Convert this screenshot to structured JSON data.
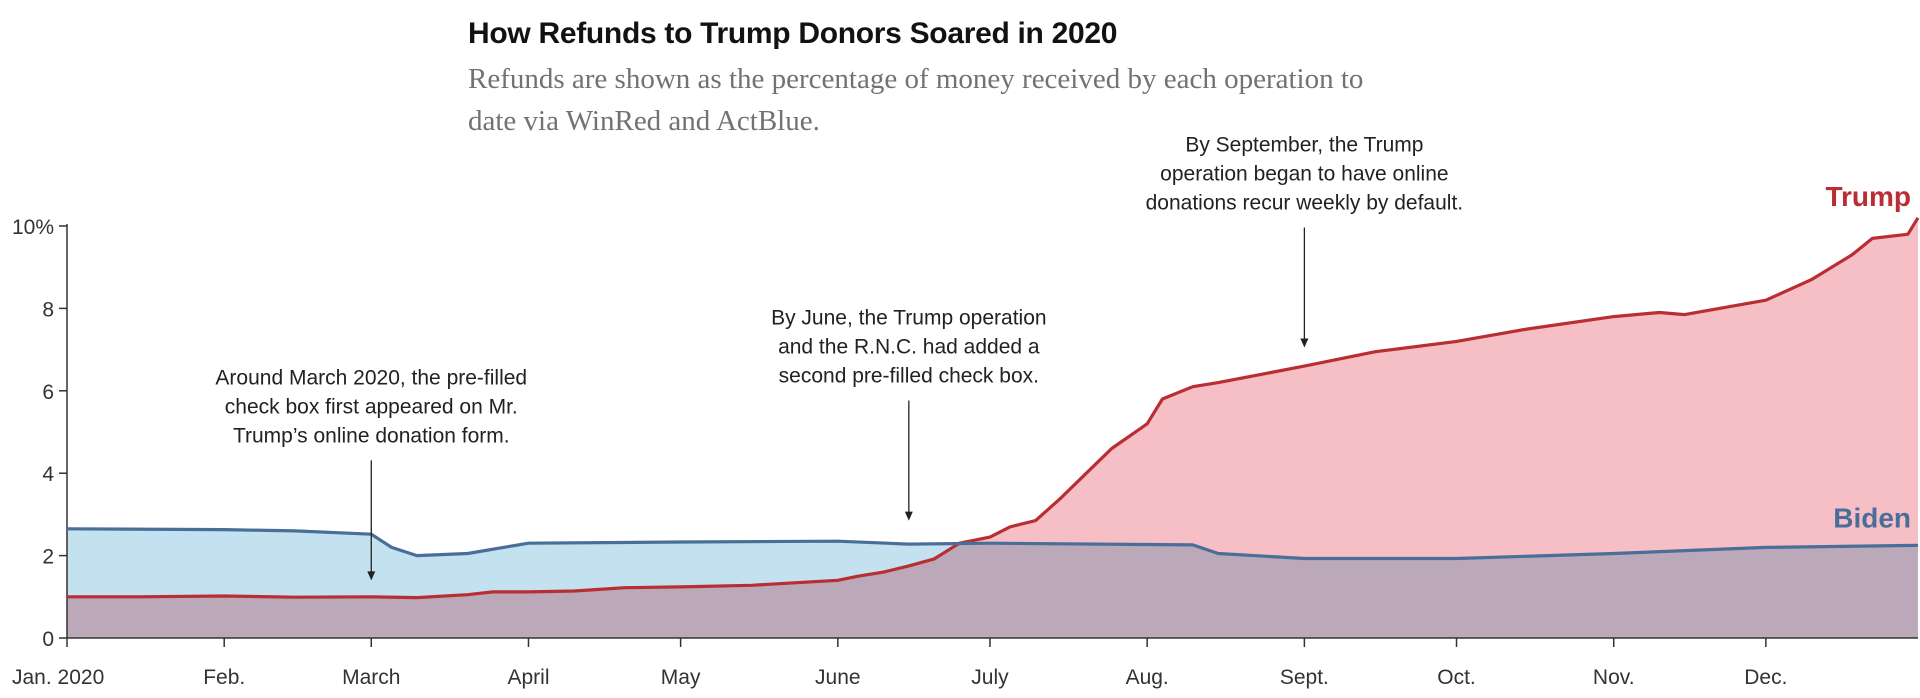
{
  "chart_data": {
    "type": "area",
    "title": "How Refunds to Trump Donors Soared in 2020",
    "subtitle": "Refunds are shown as the percentage of money received by each operation to date via WinRed and ActBlue.",
    "xlabel": "",
    "ylabel": "",
    "x_range": [
      "2020-01-01",
      "2020-12-31"
    ],
    "ylim": [
      0,
      10
    ],
    "y_ticks": [
      {
        "value": 0,
        "label": "0"
      },
      {
        "value": 2,
        "label": "2"
      },
      {
        "value": 4,
        "label": "4"
      },
      {
        "value": 6,
        "label": "6"
      },
      {
        "value": 8,
        "label": "8"
      },
      {
        "value": 10,
        "label": "10%"
      }
    ],
    "x_ticks": [
      {
        "date": "2020-01-01",
        "label": "Jan. 2020"
      },
      {
        "date": "2020-02-01",
        "label": "Feb."
      },
      {
        "date": "2020-03-01",
        "label": "March"
      },
      {
        "date": "2020-04-01",
        "label": "April"
      },
      {
        "date": "2020-05-01",
        "label": "May"
      },
      {
        "date": "2020-06-01",
        "label": "June"
      },
      {
        "date": "2020-07-01",
        "label": "July"
      },
      {
        "date": "2020-08-01",
        "label": "Aug."
      },
      {
        "date": "2020-09-01",
        "label": "Sept."
      },
      {
        "date": "2020-10-01",
        "label": "Oct."
      },
      {
        "date": "2020-11-01",
        "label": "Nov."
      },
      {
        "date": "2020-12-01",
        "label": "Dec."
      }
    ],
    "grid": false,
    "series": [
      {
        "name": "Trump",
        "color": "#b82e33",
        "fill": "#f5bfc5",
        "points": [
          [
            "2020-01-01",
            1.0
          ],
          [
            "2020-01-15",
            1.0
          ],
          [
            "2020-02-01",
            1.02
          ],
          [
            "2020-02-15",
            0.99
          ],
          [
            "2020-03-01",
            1.0
          ],
          [
            "2020-03-10",
            0.98
          ],
          [
            "2020-03-20",
            1.05
          ],
          [
            "2020-03-25",
            1.12
          ],
          [
            "2020-04-01",
            1.12
          ],
          [
            "2020-04-10",
            1.14
          ],
          [
            "2020-04-15",
            1.18
          ],
          [
            "2020-04-20",
            1.22
          ],
          [
            "2020-05-01",
            1.24
          ],
          [
            "2020-05-15",
            1.28
          ],
          [
            "2020-06-01",
            1.4
          ],
          [
            "2020-06-05",
            1.5
          ],
          [
            "2020-06-10",
            1.6
          ],
          [
            "2020-06-15",
            1.75
          ],
          [
            "2020-06-20",
            1.92
          ],
          [
            "2020-06-25",
            2.3
          ],
          [
            "2020-07-01",
            2.45
          ],
          [
            "2020-07-05",
            2.7
          ],
          [
            "2020-07-10",
            2.85
          ],
          [
            "2020-07-15",
            3.4
          ],
          [
            "2020-07-20",
            4.0
          ],
          [
            "2020-07-25",
            4.6
          ],
          [
            "2020-08-01",
            5.2
          ],
          [
            "2020-08-04",
            5.8
          ],
          [
            "2020-08-10",
            6.1
          ],
          [
            "2020-08-15",
            6.2
          ],
          [
            "2020-09-01",
            6.6
          ],
          [
            "2020-09-15",
            6.95
          ],
          [
            "2020-10-01",
            7.2
          ],
          [
            "2020-10-15",
            7.5
          ],
          [
            "2020-11-01",
            7.8
          ],
          [
            "2020-11-10",
            7.9
          ],
          [
            "2020-11-15",
            7.85
          ],
          [
            "2020-12-01",
            8.2
          ],
          [
            "2020-12-10",
            8.7
          ],
          [
            "2020-12-18",
            9.3
          ],
          [
            "2020-12-22",
            9.7
          ],
          [
            "2020-12-29",
            9.8
          ],
          [
            "2020-12-31",
            10.2
          ]
        ]
      },
      {
        "name": "Biden",
        "color": "#4a6e9a",
        "fill": "#c3e1ef",
        "points": [
          [
            "2020-01-01",
            2.65
          ],
          [
            "2020-02-01",
            2.63
          ],
          [
            "2020-02-15",
            2.6
          ],
          [
            "2020-03-01",
            2.52
          ],
          [
            "2020-03-05",
            2.2
          ],
          [
            "2020-03-10",
            2.0
          ],
          [
            "2020-03-20",
            2.05
          ],
          [
            "2020-04-01",
            2.3
          ],
          [
            "2020-05-01",
            2.33
          ],
          [
            "2020-06-01",
            2.35
          ],
          [
            "2020-06-15",
            2.28
          ],
          [
            "2020-07-01",
            2.3
          ],
          [
            "2020-08-01",
            2.27
          ],
          [
            "2020-08-10",
            2.26
          ],
          [
            "2020-08-15",
            2.05
          ],
          [
            "2020-09-01",
            1.93
          ],
          [
            "2020-10-01",
            1.93
          ],
          [
            "2020-11-01",
            2.05
          ],
          [
            "2020-12-01",
            2.2
          ],
          [
            "2020-12-31",
            2.25
          ]
        ]
      }
    ],
    "annotations": [
      {
        "date": "2020-03-01",
        "value": 1.4,
        "lines": [
          "Around March 2020, the pre-filled",
          "check box first appeared on Mr.",
          "Trump’s online donation form."
        ]
      },
      {
        "date": "2020-06-15",
        "value": 2.85,
        "lines": [
          "By June, the Trump operation",
          "and the R.N.C. had added a",
          "second pre-filled check box."
        ]
      },
      {
        "date": "2020-09-01",
        "value": 7.05,
        "lines": [
          "By September, the Trump",
          "operation began to have online",
          "donations recur weekly by default."
        ]
      }
    ]
  }
}
